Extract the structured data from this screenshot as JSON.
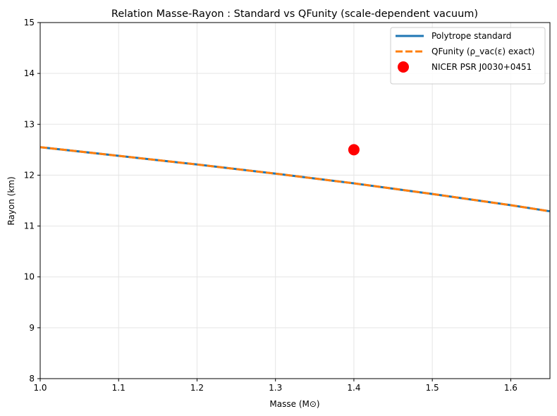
{
  "chart_data": {
    "type": "line",
    "title": "Relation Masse-Rayon : Standard vs QFunity (scale-dependent vacuum)",
    "xlabel": "Masse (M⊙)",
    "ylabel": "Rayon (km)",
    "xlim": [
      1.0,
      1.65
    ],
    "ylim": [
      8,
      15
    ],
    "xticks": [
      "1.0",
      "1.1",
      "1.2",
      "1.3",
      "1.4",
      "1.5",
      "1.6"
    ],
    "yticks": [
      "8",
      "9",
      "10",
      "11",
      "12",
      "13",
      "14",
      "15"
    ],
    "grid": true,
    "legend_position": "top-right",
    "series": [
      {
        "name": "Polytrope standard",
        "style": "solid",
        "color": "#1f77b4",
        "x": [
          1.0,
          1.1,
          1.2,
          1.3,
          1.4,
          1.5,
          1.6,
          1.65
        ],
        "y": [
          12.55,
          12.38,
          12.21,
          12.03,
          11.84,
          11.63,
          11.41,
          11.29
        ]
      },
      {
        "name": "QFunity (ρ_vac(ε) exact)",
        "style": "dashed",
        "color": "#ff7f0e",
        "x": [
          1.0,
          1.1,
          1.2,
          1.3,
          1.4,
          1.5,
          1.6,
          1.65
        ],
        "y": [
          12.55,
          12.38,
          12.21,
          12.03,
          11.84,
          11.63,
          11.41,
          11.29
        ]
      }
    ],
    "points": [
      {
        "name": "NICER PSR J0030+0451",
        "color": "#ff0000",
        "x": 1.4,
        "y": 12.5
      }
    ]
  }
}
